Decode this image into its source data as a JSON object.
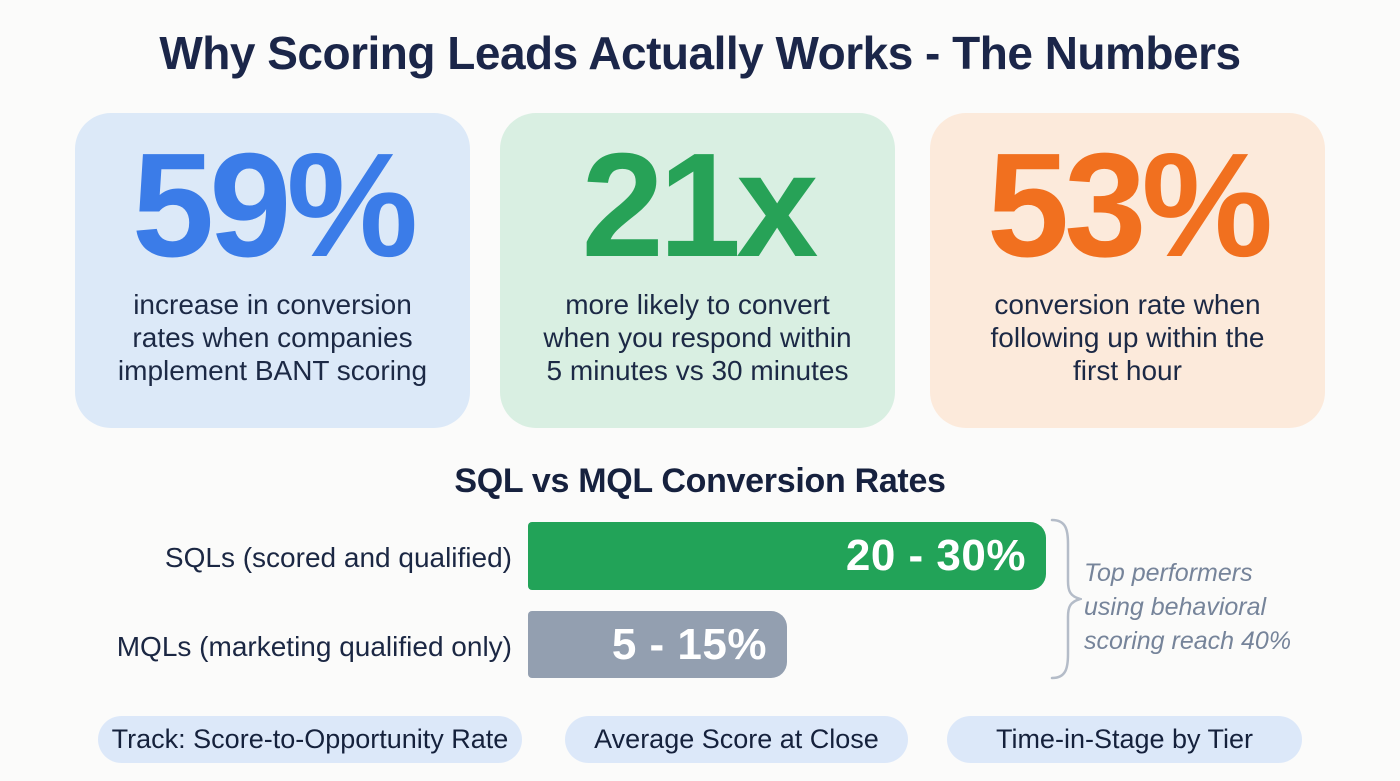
{
  "title": "Why Scoring Leads Actually Works - The Numbers",
  "stats": [
    {
      "value": "59%",
      "description": "increase in conversion\nrates when companies\nimplement BANT scoring",
      "accent_color": "#3b7ce8",
      "bg_color": "#dce9f8"
    },
    {
      "value": "21x",
      "description": "more likely to convert\nwhen you respond within\n5 minutes vs 30 minutes",
      "accent_color": "#27a257",
      "bg_color": "#d9efe2"
    },
    {
      "value": "53%",
      "description": "conversion rate when\nfollowing up within the\nfirst hour",
      "accent_color": "#f1701f",
      "bg_color": "#fceadb"
    }
  ],
  "chart_data": {
    "type": "bar",
    "orientation": "horizontal",
    "title": "SQL vs MQL Conversion Rates",
    "categories": [
      "SQLs (scored and qualified)",
      "MQLs (marketing qualified only)"
    ],
    "values": [
      [
        20,
        30
      ],
      [
        5,
        15
      ]
    ],
    "value_labels": [
      "20 - 30%",
      "5 - 15%"
    ],
    "bar_colors": [
      "#22a358",
      "#939fb0"
    ],
    "value_text_color": "#ffffff",
    "xlim": [
      0,
      30
    ],
    "grid": false,
    "annotation": "Top performers\nusing behavioral\nscoring reach 40%",
    "annotation_color": "#76849a",
    "brace_color": "#b4bcc8"
  },
  "footer_pills": [
    {
      "label": "Track: Score-to-Opportunity Rate"
    },
    {
      "label": "Average Score at Close"
    },
    {
      "label": "Time-in-Stage by Tier"
    }
  ],
  "colors": {
    "background": "#fbfbfa",
    "title_text": "#1b2649",
    "body_text": "#1c2945",
    "pill_bg": "#dce8f9"
  }
}
